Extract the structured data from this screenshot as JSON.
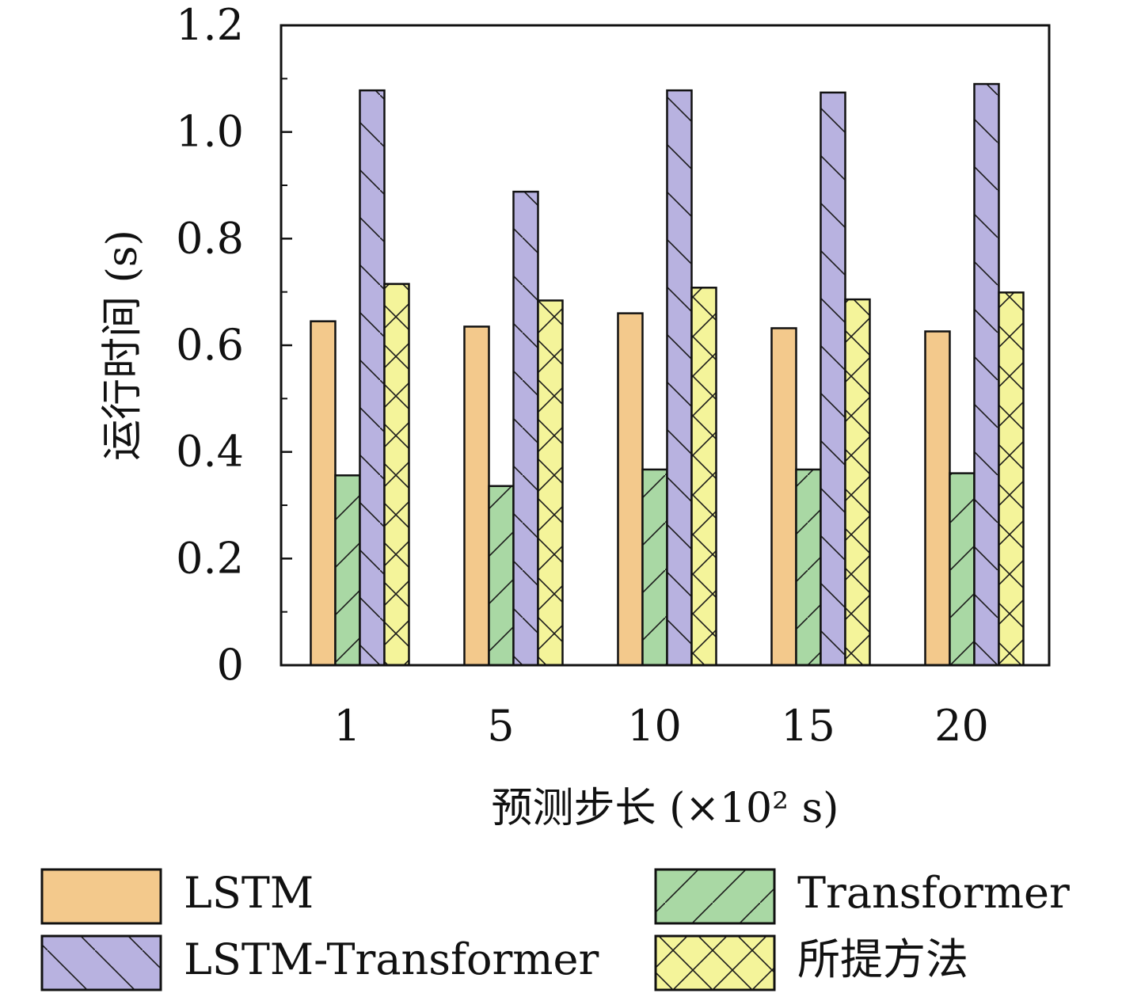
{
  "chart_data": {
    "type": "bar",
    "categories": [
      "1",
      "5",
      "10",
      "15",
      "20"
    ],
    "series": [
      {
        "name": "LSTM",
        "values": [
          0.645,
          0.635,
          0.66,
          0.632,
          0.626
        ],
        "fill": "#f3c98c",
        "hatch": "none"
      },
      {
        "name": "Transformer",
        "values": [
          0.356,
          0.336,
          0.367,
          0.367,
          0.36
        ],
        "fill": "#a9d8a4",
        "hatch": "forward"
      },
      {
        "name": "LSTM-Transformer",
        "values": [
          1.078,
          0.888,
          1.078,
          1.074,
          1.09
        ],
        "fill": "#b8b2e0",
        "hatch": "backward"
      },
      {
        "name": "所提方法",
        "values": [
          0.715,
          0.684,
          0.708,
          0.686,
          0.699
        ],
        "fill": "#f4f49a",
        "hatch": "cross"
      }
    ],
    "ylim": [
      0,
      1.2
    ],
    "yticks": [
      "0",
      "0.2",
      "0.4",
      "0.6",
      "0.8",
      "1.0",
      "1.2"
    ],
    "ytick_values": [
      0,
      0.2,
      0.4,
      0.6,
      0.8,
      1.0,
      1.2
    ],
    "xlabel": "预测步长 (×10² s)",
    "ylabel": "运行时间 (s)",
    "legend_position": "bottom",
    "grid": false
  }
}
